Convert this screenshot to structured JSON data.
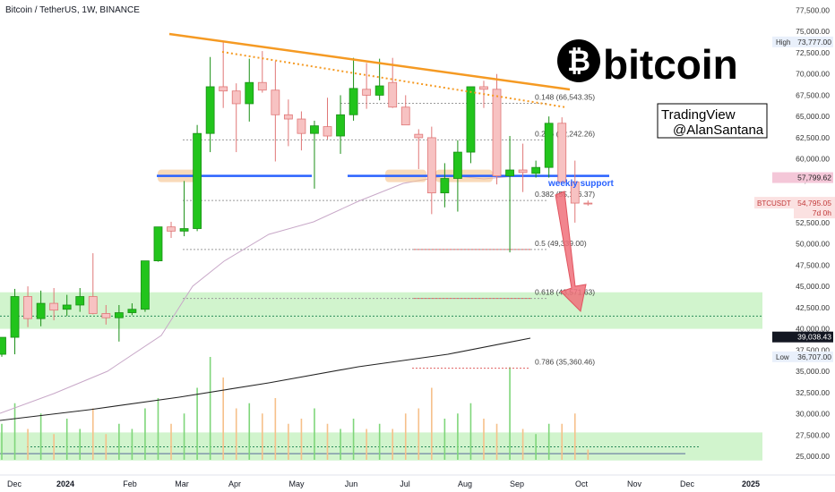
{
  "header": {
    "symbol_title": "Bitcoin / TetherUS, 1W, BINANCE"
  },
  "brand": {
    "logo_glyph": "₿",
    "logo_word": "bitcoin",
    "credit_line1": "TradingView",
    "credit_line2": "@AlanSantana"
  },
  "annotations": {
    "weekly_support": "weekly support"
  },
  "price_axis": {
    "ticks": [
      "77,500.00",
      "75,000.00",
      "72,500.00",
      "70,000.00",
      "67,500.00",
      "65,000.00",
      "62,500.00",
      "60,000.00",
      "57,500.00",
      "55,000.00",
      "52,500.00",
      "50,000.00",
      "47,500.00",
      "45,000.00",
      "42,500.00",
      "40,000.00",
      "37,500.00",
      "35,000.00",
      "32,500.00",
      "30,000.00",
      "27,500.00",
      "25,000.00"
    ],
    "tick_values": [
      77500,
      75000,
      72500,
      70000,
      67500,
      65000,
      62500,
      60000,
      57500,
      55000,
      52500,
      50000,
      47500,
      45000,
      42500,
      40000,
      37500,
      35000,
      32500,
      30000,
      27500,
      25000
    ],
    "high_label": "High",
    "high_value": "73,777.00",
    "low_label": "Low",
    "low_value": "36,707.00",
    "tag_orange": "57,799.62",
    "tag_btc_label": "BTCUSDT",
    "tag_btc_value": "54,795.05",
    "tag_btc_sub": "7d 0h",
    "tag_dark": "39,038.43"
  },
  "time_axis": {
    "labels": [
      "Dec",
      "2024",
      "Feb",
      "Mar",
      "Apr",
      "May",
      "Jun",
      "Jul",
      "Aug",
      "Sep",
      "Oct",
      "Nov",
      "Dec",
      "2025"
    ]
  },
  "fib_labels": [
    "0.148 (66,543.35)",
    "0.236 (62,242.26)",
    "0.382 (55,106.37)",
    "0.5 (49,339.00)",
    "0.618 (43,571.63)",
    "0.786 (35,360.46)"
  ],
  "colors": {
    "up": "#22c41c",
    "down": "#f7c2c2",
    "down_stroke": "#e07777",
    "trend": "#f59a23",
    "support": "#2962ff",
    "zone": "#c9f2c4",
    "ma_long": "#222222",
    "ma_mid": "#c8a8c8",
    "arrow": "#f0707a",
    "fib": "#d08080"
  },
  "chart_data": {
    "type": "candlestick",
    "title": "Bitcoin / TetherUS, 1W, BINANCE",
    "ylim": [
      24000,
      79000
    ],
    "candles": [
      {
        "o": 37000,
        "h": 38800,
        "l": 36700,
        "c": 39000
      },
      {
        "o": 39000,
        "h": 44700,
        "l": 37000,
        "c": 43800
      },
      {
        "o": 43800,
        "h": 45000,
        "l": 40200,
        "c": 41200
      },
      {
        "o": 41200,
        "h": 44500,
        "l": 40300,
        "c": 43000
      },
      {
        "o": 43000,
        "h": 44800,
        "l": 41000,
        "c": 42200
      },
      {
        "o": 42300,
        "h": 44000,
        "l": 41500,
        "c": 42800
      },
      {
        "o": 42800,
        "h": 44800,
        "l": 42000,
        "c": 43800
      },
      {
        "o": 43800,
        "h": 48900,
        "l": 41700,
        "c": 41800
      },
      {
        "o": 41800,
        "h": 42800,
        "l": 40500,
        "c": 41300
      },
      {
        "o": 41300,
        "h": 42800,
        "l": 38500,
        "c": 41900
      },
      {
        "o": 41900,
        "h": 43000,
        "l": 41600,
        "c": 42300
      },
      {
        "o": 42300,
        "h": 48000,
        "l": 42000,
        "c": 48000
      },
      {
        "o": 48000,
        "h": 52000,
        "l": 47900,
        "c": 52000
      },
      {
        "o": 52000,
        "h": 52600,
        "l": 50700,
        "c": 51500
      },
      {
        "o": 51500,
        "h": 57400,
        "l": 50900,
        "c": 51800
      },
      {
        "o": 51800,
        "h": 64000,
        "l": 51500,
        "c": 63000
      },
      {
        "o": 63000,
        "h": 72000,
        "l": 60800,
        "c": 68500
      },
      {
        "o": 68500,
        "h": 73800,
        "l": 66000,
        "c": 68000
      },
      {
        "o": 68000,
        "h": 68900,
        "l": 60800,
        "c": 66500
      },
      {
        "o": 66500,
        "h": 71800,
        "l": 64400,
        "c": 69000
      },
      {
        "o": 69000,
        "h": 72700,
        "l": 67800,
        "c": 68100
      },
      {
        "o": 68100,
        "h": 71500,
        "l": 59700,
        "c": 65200
      },
      {
        "o": 65200,
        "h": 67000,
        "l": 61500,
        "c": 64700
      },
      {
        "o": 64700,
        "h": 65600,
        "l": 61000,
        "c": 63000
      },
      {
        "o": 63000,
        "h": 64500,
        "l": 56500,
        "c": 63900
      },
      {
        "o": 63800,
        "h": 67200,
        "l": 62300,
        "c": 62700
      },
      {
        "o": 62700,
        "h": 67500,
        "l": 60600,
        "c": 65200
      },
      {
        "o": 65200,
        "h": 71900,
        "l": 64500,
        "c": 68300
      },
      {
        "o": 68200,
        "h": 71300,
        "l": 65900,
        "c": 67500
      },
      {
        "o": 67500,
        "h": 71800,
        "l": 66900,
        "c": 68600
      },
      {
        "o": 69000,
        "h": 71900,
        "l": 66000,
        "c": 66100
      },
      {
        "o": 66100,
        "h": 67500,
        "l": 64400,
        "c": 64000
      },
      {
        "o": 62900,
        "h": 63500,
        "l": 58800,
        "c": 62500
      },
      {
        "o": 62500,
        "h": 63800,
        "l": 53500,
        "c": 56000
      },
      {
        "o": 56000,
        "h": 59500,
        "l": 54300,
        "c": 57700
      },
      {
        "o": 57700,
        "h": 62200,
        "l": 53800,
        "c": 60800
      },
      {
        "o": 60800,
        "h": 68500,
        "l": 59500,
        "c": 68500
      },
      {
        "o": 68500,
        "h": 69200,
        "l": 66000,
        "c": 68200
      },
      {
        "o": 68200,
        "h": 70000,
        "l": 57000,
        "c": 58000
      },
      {
        "o": 58000,
        "h": 62700,
        "l": 49000,
        "c": 58700
      },
      {
        "o": 58700,
        "h": 61800,
        "l": 56100,
        "c": 58400
      },
      {
        "o": 58300,
        "h": 59800,
        "l": 57800,
        "c": 59000
      },
      {
        "o": 59000,
        "h": 65000,
        "l": 57800,
        "c": 64200
      },
      {
        "o": 64200,
        "h": 64900,
        "l": 57200,
        "c": 57300
      },
      {
        "o": 57300,
        "h": 59800,
        "l": 52500,
        "c": 54800
      },
      {
        "o": 54800,
        "h": 55100,
        "l": 54500,
        "c": 54795
      }
    ],
    "volume_relative": [
      0.35,
      0.55,
      0.3,
      0.45,
      0.25,
      0.4,
      0.3,
      0.5,
      0.25,
      0.35,
      0.3,
      0.5,
      0.6,
      0.35,
      0.45,
      0.7,
      1.0,
      0.8,
      0.5,
      0.55,
      0.45,
      0.6,
      0.35,
      0.4,
      0.5,
      0.35,
      0.3,
      0.4,
      0.3,
      0.35,
      0.3,
      0.45,
      0.5,
      0.7,
      0.4,
      0.45,
      0.55,
      0.4,
      0.35,
      0.9,
      0.3,
      0.25,
      0.35,
      0.35,
      0.45,
      0.1
    ],
    "fibonacci_levels": [
      {
        "ratio": 0.148,
        "price": 66543.35
      },
      {
        "ratio": 0.236,
        "price": 62242.26
      },
      {
        "ratio": 0.382,
        "price": 55106.37
      },
      {
        "ratio": 0.5,
        "price": 49339.0
      },
      {
        "ratio": 0.618,
        "price": 43571.63
      },
      {
        "ratio": 0.786,
        "price": 35360.46
      }
    ],
    "support_level": 58000,
    "demand_zone": [
      40000,
      44300
    ],
    "volume_zone": [
      24500,
      27800
    ],
    "last_price": 54795.05,
    "high": 73777.0,
    "low": 36707.0
  }
}
